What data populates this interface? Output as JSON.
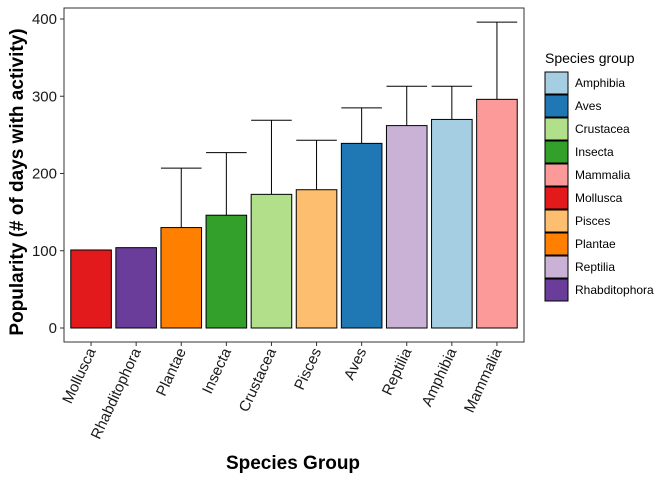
{
  "chart_data": {
    "type": "bar",
    "xlabel": "Species Group",
    "ylabel": "Popularity (# of days with activity)",
    "ylim": [
      0,
      415
    ],
    "yticks": [
      0,
      100,
      200,
      300,
      400
    ],
    "grid": false,
    "legend_position": "right",
    "legend_title": "Species group",
    "categories": [
      "Mollusca",
      "Rhabditophora",
      "Plantae",
      "Insecta",
      "Crustacea",
      "Pisces",
      "Aves",
      "Reptilia",
      "Amphibia",
      "Mammalia"
    ],
    "values": [
      101,
      104,
      130,
      146,
      173,
      179,
      239,
      262,
      270,
      296
    ],
    "error_upper": [
      null,
      null,
      207,
      227,
      269,
      243,
      285,
      313,
      313,
      396
    ],
    "colors": {
      "Amphibia": "#a6cee3",
      "Aves": "#1f78b4",
      "Crustacea": "#b2df8a",
      "Insecta": "#33a02c",
      "Mammalia": "#fb9a99",
      "Mollusca": "#e31a1c",
      "Pisces": "#fdbf6f",
      "Plantae": "#ff7f00",
      "Reptilia": "#cab2d6",
      "Rhabditophora": "#6a3d9a"
    },
    "legend_entries": [
      "Amphibia",
      "Aves",
      "Crustacea",
      "Insecta",
      "Mammalia",
      "Mollusca",
      "Pisces",
      "Plantae",
      "Reptilia",
      "Rhabditophora"
    ]
  }
}
